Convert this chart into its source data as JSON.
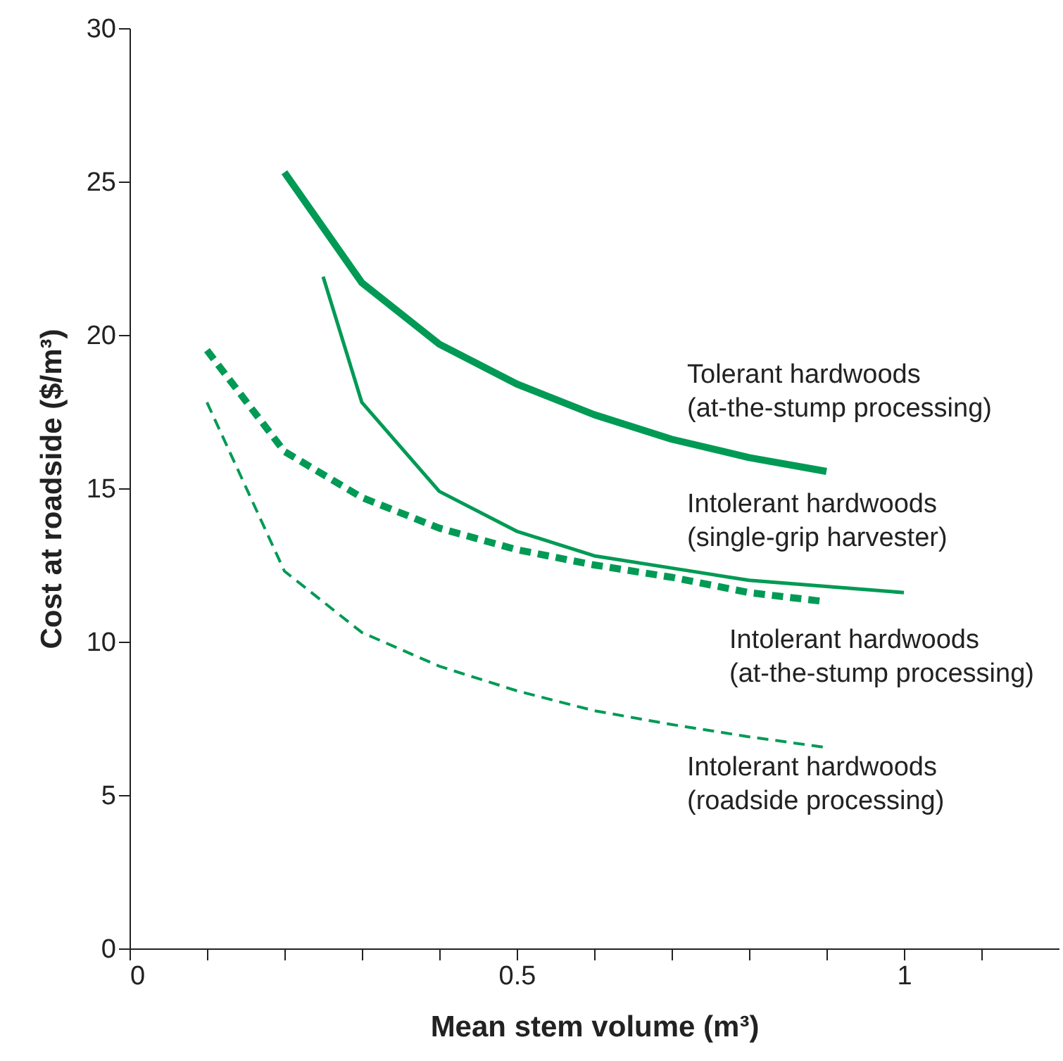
{
  "chart_data": {
    "type": "line",
    "xlabel": "Mean stem volume (m³)",
    "ylabel": "Cost at roadside ($/m³)",
    "xlim": [
      0,
      1.2
    ],
    "ylim": [
      0,
      30
    ],
    "xticks": [
      0,
      {
        "value": 0.1,
        "label": null
      },
      {
        "value": 0.2,
        "label": null
      },
      {
        "value": 0.3,
        "label": null
      },
      {
        "value": 0.4,
        "label": null
      },
      0.5,
      {
        "value": 0.6,
        "label": null
      },
      {
        "value": 0.7,
        "label": null
      },
      {
        "value": 0.8,
        "label": null
      },
      {
        "value": 0.9,
        "label": null
      },
      1,
      {
        "value": 1.1,
        "label": null
      }
    ],
    "yticks": [
      0,
      5,
      10,
      15,
      20,
      25,
      30
    ],
    "grid": false,
    "marker": "none",
    "series": [
      {
        "name": "Tolerant hardwoods\n(at-the-stump processing)",
        "color": "#009a55",
        "line_style": "solid",
        "x": [
          0.2,
          0.3,
          0.4,
          0.5,
          0.6,
          0.7,
          0.8,
          0.9
        ],
        "values": [
          25.3,
          21.7,
          19.7,
          18.4,
          17.4,
          16.6,
          16.0,
          15.55
        ]
      },
      {
        "name": "Intolerant hardwoods\n(single-grip harvester)",
        "color": "#009a55",
        "line_style": "solid",
        "x": [
          0.25,
          0.3,
          0.4,
          0.5,
          0.6,
          0.7,
          0.8,
          0.9,
          1.0
        ],
        "values": [
          21.9,
          17.8,
          14.9,
          13.6,
          12.8,
          12.4,
          12.0,
          11.8,
          11.6
        ]
      },
      {
        "name": "Intolerant hardwoods\n(at-the-stump processing)",
        "color": "#009a55",
        "line_style": "dashed",
        "x": [
          0.1,
          0.2,
          0.3,
          0.4,
          0.5,
          0.6,
          0.7,
          0.8,
          0.9
        ],
        "values": [
          19.5,
          16.2,
          14.7,
          13.7,
          13.0,
          12.5,
          12.1,
          11.6,
          11.3
        ]
      },
      {
        "name": "Intolerant hardwoods\n(roadside processing)",
        "color": "#009a55",
        "line_style": "dashed",
        "x": [
          0.1,
          0.2,
          0.3,
          0.4,
          0.5,
          0.6,
          0.7,
          0.8,
          0.9
        ],
        "values": [
          17.8,
          12.3,
          10.3,
          9.2,
          8.4,
          7.75,
          7.3,
          6.9,
          6.55
        ]
      }
    ]
  }
}
